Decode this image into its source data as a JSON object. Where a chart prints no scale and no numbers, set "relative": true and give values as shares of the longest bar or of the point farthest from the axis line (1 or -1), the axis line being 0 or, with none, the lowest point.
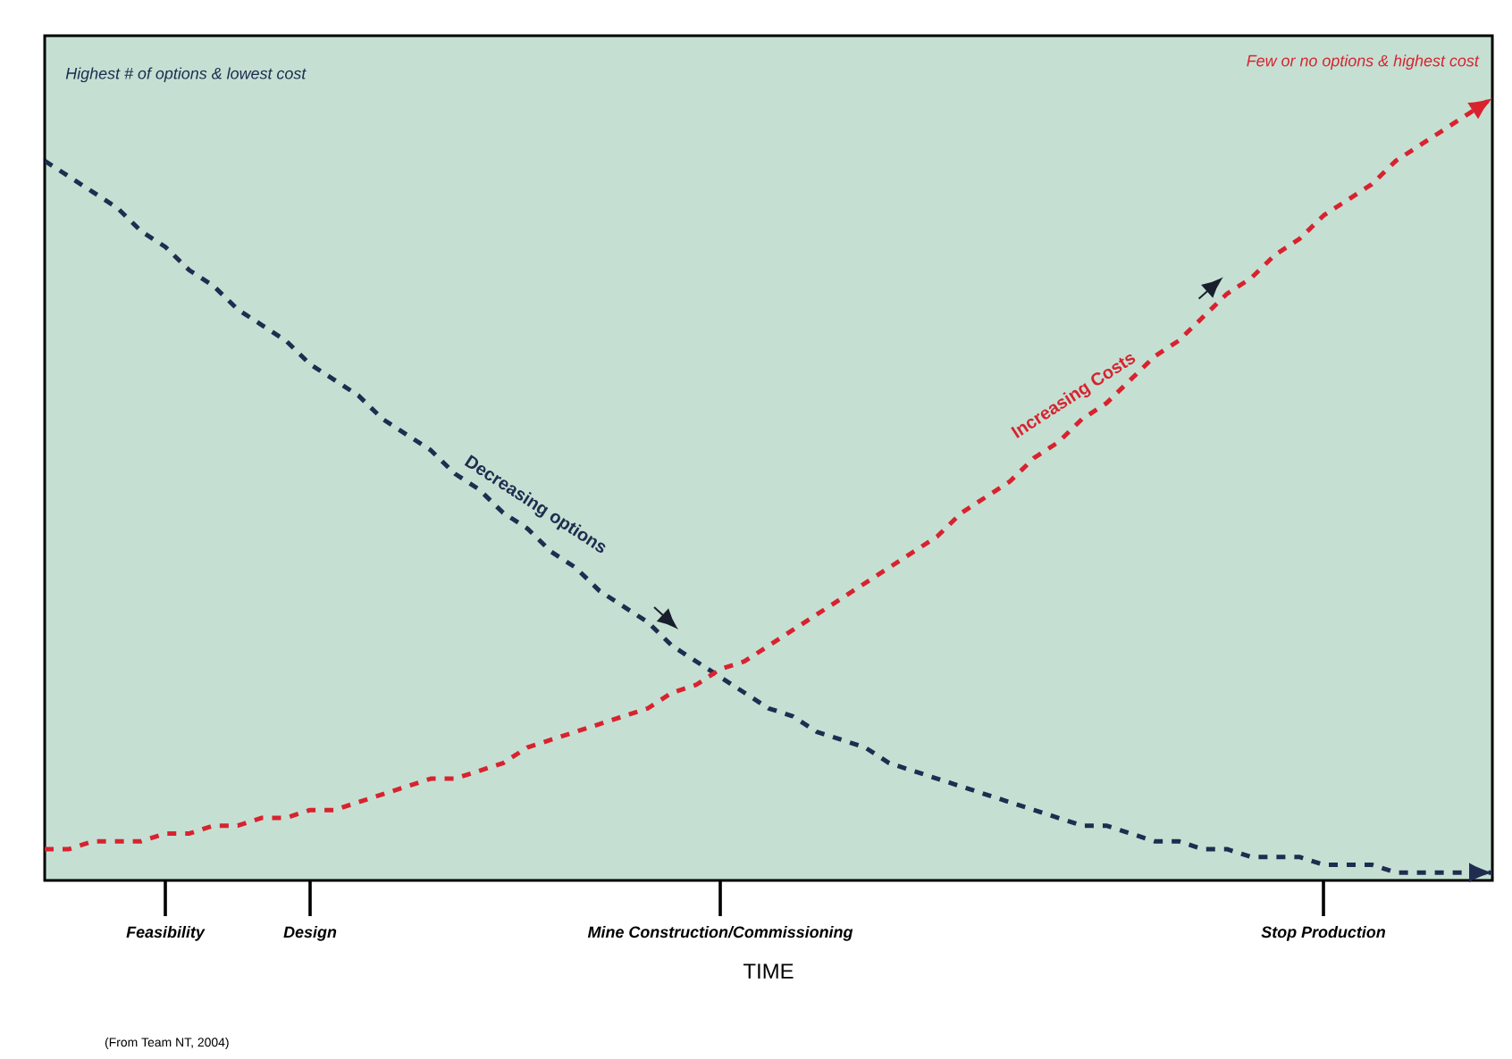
{
  "chart_data": {
    "type": "line",
    "relative": true,
    "xlabel": "TIME",
    "categories": [
      null,
      null,
      null,
      null,
      null,
      "Feasibility",
      null,
      null,
      null,
      null,
      null,
      "Design",
      null,
      null,
      null,
      null,
      null,
      null,
      null,
      null,
      null,
      null,
      null,
      null,
      null,
      null,
      null,
      null,
      "Mine Construction/Commissioning",
      null,
      null,
      null,
      null,
      null,
      null,
      null,
      null,
      null,
      null,
      null,
      null,
      null,
      null,
      null,
      null,
      null,
      null,
      null,
      null,
      null,
      null,
      null,
      null,
      "Stop Production",
      null,
      null,
      null,
      null,
      null,
      null,
      null
    ],
    "series": [
      {
        "name": "Decreasing options",
        "color": "#1f2d4f",
        "values": [
          0.92,
          0.9,
          0.88,
          0.86,
          0.83,
          0.81,
          0.78,
          0.76,
          0.73,
          0.71,
          0.69,
          0.66,
          0.64,
          0.62,
          0.59,
          0.57,
          0.55,
          0.52,
          0.5,
          0.47,
          0.45,
          0.42,
          0.4,
          0.37,
          0.35,
          0.33,
          0.3,
          0.28,
          0.26,
          0.24,
          0.22,
          0.21,
          0.19,
          0.18,
          0.17,
          0.15,
          0.14,
          0.13,
          0.12,
          0.11,
          0.1,
          0.09,
          0.08,
          0.07,
          0.07,
          0.06,
          0.05,
          0.05,
          0.04,
          0.04,
          0.03,
          0.03,
          0.03,
          0.02,
          0.02,
          0.02,
          0.01,
          0.01,
          0.01,
          0.01,
          0.01
        ]
      },
      {
        "name": "Increasing Costs",
        "color": "#d8232f",
        "values": [
          0.04,
          0.04,
          0.05,
          0.05,
          0.05,
          0.06,
          0.06,
          0.07,
          0.07,
          0.08,
          0.08,
          0.09,
          0.09,
          0.1,
          0.11,
          0.12,
          0.13,
          0.13,
          0.14,
          0.15,
          0.17,
          0.18,
          0.19,
          0.2,
          0.21,
          0.22,
          0.24,
          0.25,
          0.27,
          0.28,
          0.3,
          0.32,
          0.34,
          0.36,
          0.38,
          0.4,
          0.42,
          0.44,
          0.47,
          0.49,
          0.51,
          0.54,
          0.56,
          0.59,
          0.61,
          0.64,
          0.67,
          0.69,
          0.72,
          0.75,
          0.77,
          0.8,
          0.82,
          0.85,
          0.87,
          0.89,
          0.92,
          0.94,
          0.96,
          0.98,
          1
        ]
      }
    ],
    "annotations": [
      "Highest # of options & lowest cost",
      "Few or no options & highest cost",
      "(From Team NT, 2004)"
    ],
    "legend": false,
    "marker": "none",
    "line_style": "dashed",
    "grid": false
  }
}
